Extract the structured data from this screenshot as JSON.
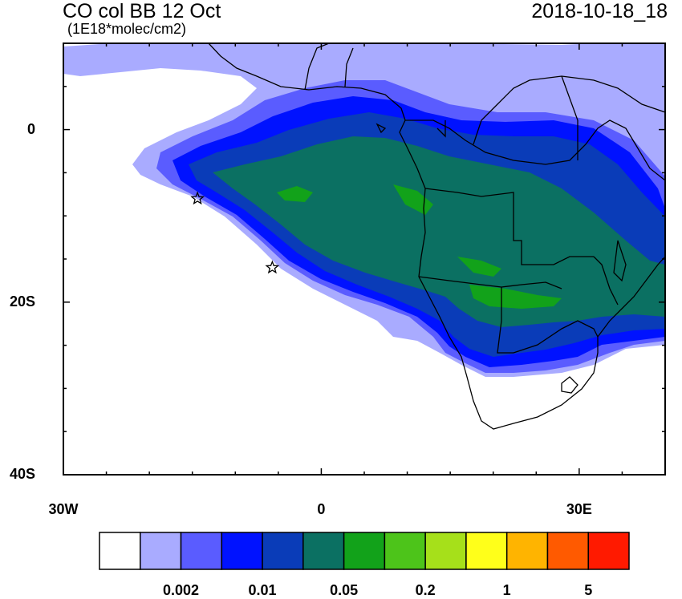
{
  "header": {
    "title": "CO col BB 12 Oct",
    "subtitle": "(1E18*molec/cm2)",
    "datetime": "2018-10-18_18"
  },
  "axes": {
    "lat_ticks": [
      {
        "value": 0,
        "label": "0"
      },
      {
        "value": -20,
        "label": "20S"
      },
      {
        "value": -40,
        "label": "40S"
      }
    ],
    "lon_ticks": [
      {
        "value": -30,
        "label": "30W"
      },
      {
        "value": 0,
        "label": "0"
      },
      {
        "value": 30,
        "label": "30E"
      }
    ],
    "lon_range": [
      -30,
      40
    ],
    "lat_range": [
      -40,
      10
    ]
  },
  "colorbar": {
    "colors": [
      "#ffffff",
      "#a9abff",
      "#5a5cff",
      "#0012ff",
      "#0a3cb8",
      "#0b7062",
      "#12a21a",
      "#4dc41a",
      "#a6e01a",
      "#ffff1a",
      "#ffb400",
      "#ff5a00",
      "#ff1a00"
    ],
    "labels": [
      {
        "after_index": 1,
        "text": "0.002"
      },
      {
        "after_index": 3,
        "text": "0.01"
      },
      {
        "after_index": 5,
        "text": "0.05"
      },
      {
        "after_index": 7,
        "text": "0.2"
      },
      {
        "after_index": 9,
        "text": "1"
      },
      {
        "after_index": 11,
        "text": "5"
      }
    ]
  },
  "markers": [
    {
      "name": "station-1",
      "lon": -14.4,
      "lat": -8.0
    },
    {
      "name": "station-2",
      "lon": -5.7,
      "lat": -16.0
    }
  ]
}
